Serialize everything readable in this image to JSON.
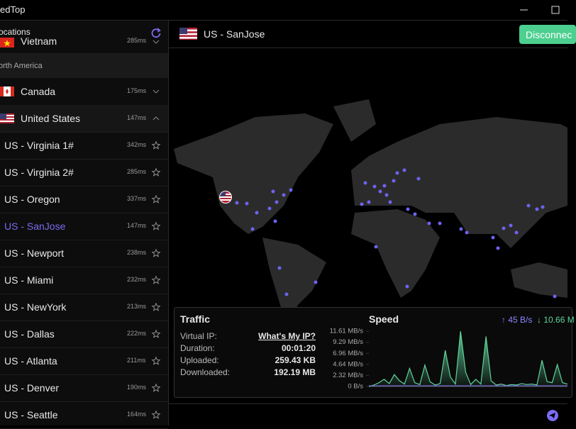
{
  "window": {
    "title": "edTop"
  },
  "sidebar": {
    "title": "ocations",
    "top_country": {
      "name": "Vietnam",
      "ping": "285ms"
    },
    "region": "orth America",
    "countries": [
      {
        "name": "Canada",
        "ping": "175ms"
      },
      {
        "name": "United States",
        "ping": "147ms"
      }
    ],
    "servers": [
      {
        "name": "US - Virginia 1#",
        "ping": "342ms"
      },
      {
        "name": "US - Virginia 2#",
        "ping": "285ms"
      },
      {
        "name": "US - Oregon",
        "ping": "337ms"
      },
      {
        "name": "US - SanJose",
        "ping": "147ms"
      },
      {
        "name": "US - Newport",
        "ping": "238ms"
      },
      {
        "name": "US - Miami",
        "ping": "232ms"
      },
      {
        "name": "US - NewYork",
        "ping": "213ms"
      },
      {
        "name": "US - Dallas",
        "ping": "222ms"
      },
      {
        "name": "US - Atlanta",
        "ping": "211ms"
      },
      {
        "name": "US - Denver",
        "ping": "190ms"
      },
      {
        "name": "US - Seattle",
        "ping": "164ms"
      }
    ]
  },
  "main": {
    "location": "US - SanJose",
    "button": "Disconnec"
  },
  "traffic": {
    "title": "Traffic",
    "rows": [
      [
        "Virtual IP:",
        "What's My IP?"
      ],
      [
        "Duration:",
        "00:01:20"
      ],
      [
        "Uploaded:",
        "259.43 KB"
      ],
      [
        "Downloaded:",
        "192.19 MB"
      ]
    ]
  },
  "speed": {
    "title": "Speed",
    "upload": "↑ 45 B/s",
    "download": "↓ 10.66 M",
    "chart_data": {
      "type": "area",
      "color": "#5fd39a",
      "ylim": [
        0,
        11.61
      ],
      "yticks": [
        {
          "value": 11.61,
          "label": "11.61 MB/s"
        },
        {
          "value": 9.29,
          "label": "9.29 MB/s"
        },
        {
          "value": 6.96,
          "label": "6.96 MB/s"
        },
        {
          "value": 4.64,
          "label": "4.64 MB/s"
        },
        {
          "value": 2.32,
          "label": "2.32 MB/s"
        },
        {
          "value": 0,
          "label": "0 B/s"
        }
      ],
      "values": [
        0,
        0.3,
        0.8,
        1.5,
        0.6,
        2.5,
        1.2,
        0.5,
        3.8,
        0.8,
        0.4,
        4.5,
        1.0,
        0.3,
        0.6,
        7.6,
        2.0,
        0.5,
        11.6,
        3.0,
        0.4,
        1.5,
        0.5,
        10.5,
        1.2,
        0.3,
        0.5,
        0.2,
        0.4,
        0.3,
        0.6,
        0.4,
        0.5,
        0.3,
        5.5,
        1.0,
        0.8,
        4.6,
        0.8,
        0.5
      ]
    }
  }
}
